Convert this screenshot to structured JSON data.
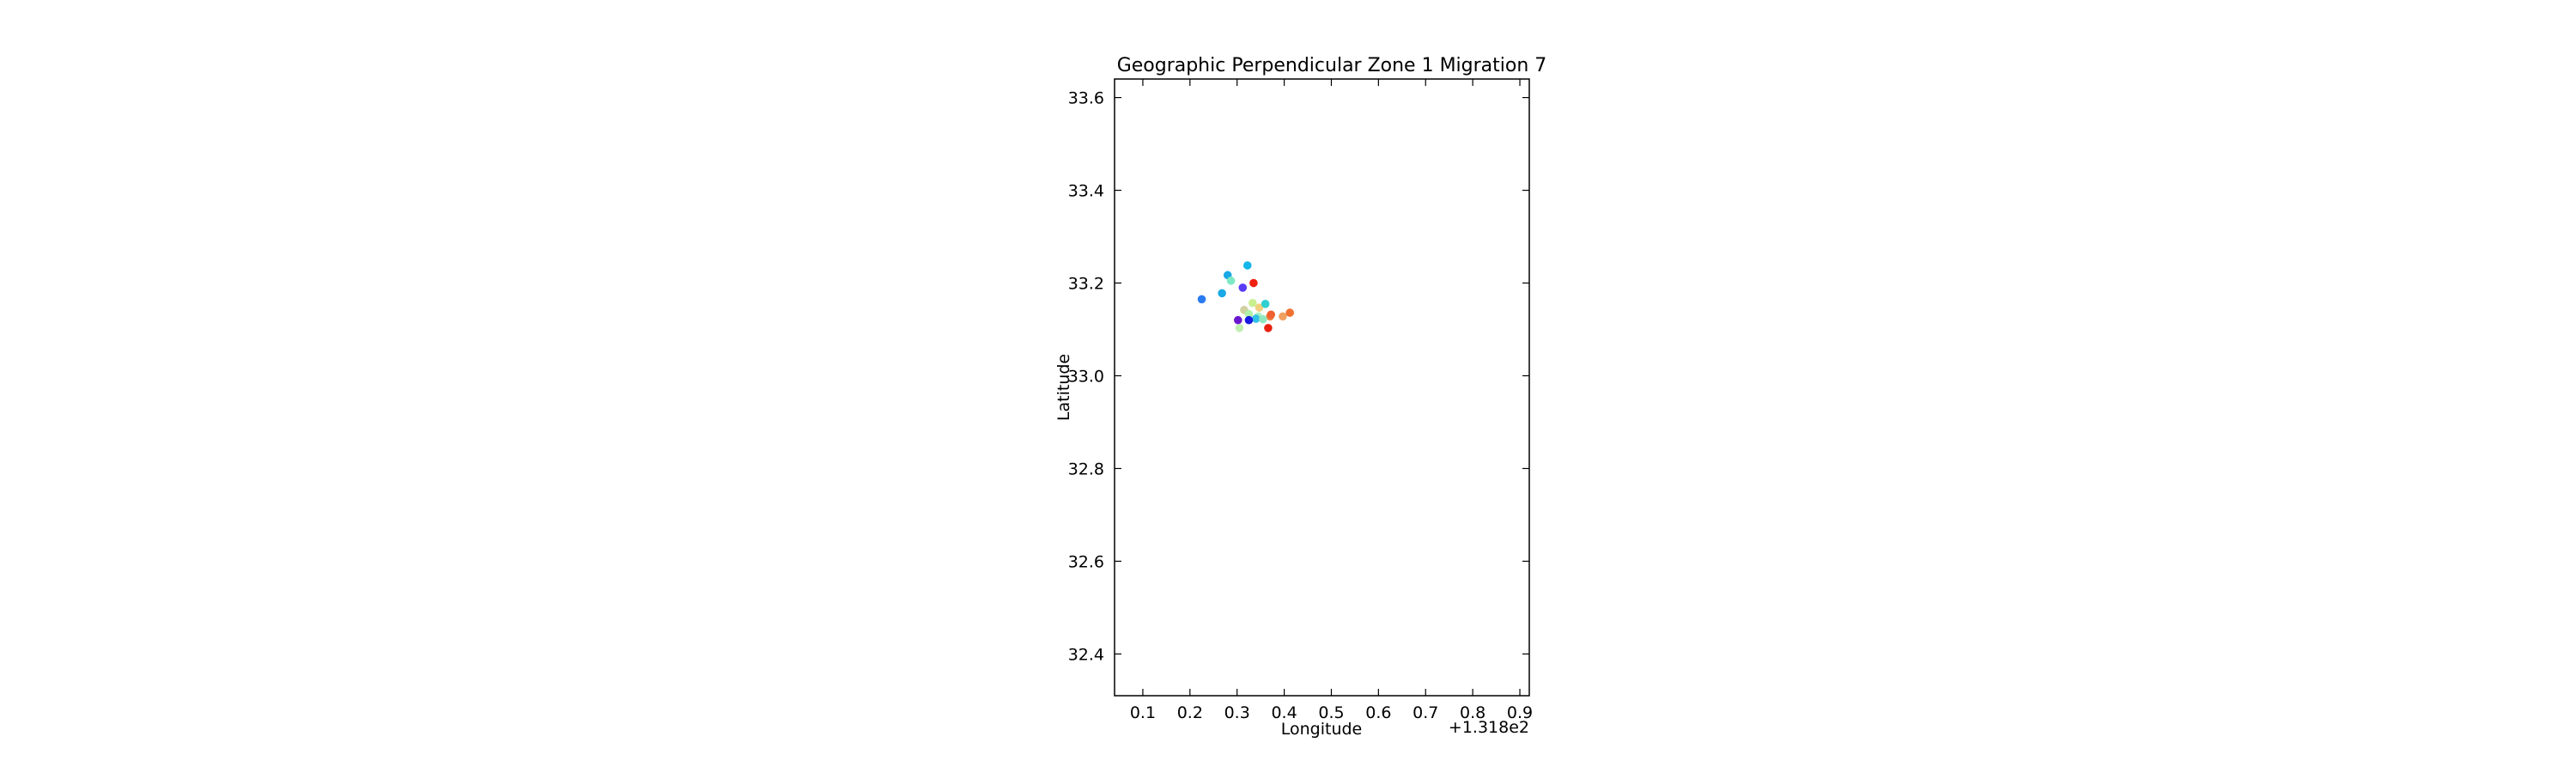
{
  "chart_data": {
    "type": "scatter",
    "title": "Geographic Perpendicular Zone 1 Migration 7",
    "xlabel": "Longitude",
    "ylabel": "Latitude",
    "x_offset_label": "+1.318e2",
    "xlim": [
      0.04,
      0.92
    ],
    "ylim": [
      32.31,
      33.64
    ],
    "x_ticks": [
      0.1,
      0.2,
      0.3,
      0.4,
      0.5,
      0.6,
      0.7,
      0.8,
      0.9
    ],
    "x_tick_labels": [
      "0.1",
      "0.2",
      "0.3",
      "0.4",
      "0.5",
      "0.6",
      "0.7",
      "0.8",
      "0.9"
    ],
    "y_ticks": [
      32.4,
      32.6,
      32.8,
      33.0,
      33.2,
      33.4,
      33.6
    ],
    "y_tick_labels": [
      "32.4",
      "32.6",
      "32.8",
      "33.0",
      "33.2",
      "33.4",
      "33.6"
    ],
    "grid": false,
    "legend": "none",
    "colormap": "rainbow",
    "points": [
      {
        "x": 0.225,
        "y": 33.165,
        "color": "#2b7bf0"
      },
      {
        "x": 0.268,
        "y": 33.178,
        "color": "#1aa8e6"
      },
      {
        "x": 0.28,
        "y": 33.217,
        "color": "#1aa8e6"
      },
      {
        "x": 0.287,
        "y": 33.205,
        "color": "#7fe8c4"
      },
      {
        "x": 0.322,
        "y": 33.238,
        "color": "#12b6e8"
      },
      {
        "x": 0.312,
        "y": 33.19,
        "color": "#5a3bf5"
      },
      {
        "x": 0.335,
        "y": 33.2,
        "color": "#f02010"
      },
      {
        "x": 0.333,
        "y": 33.157,
        "color": "#c8f090"
      },
      {
        "x": 0.347,
        "y": 33.147,
        "color": "#f0d080"
      },
      {
        "x": 0.315,
        "y": 33.142,
        "color": "#d0d0a0"
      },
      {
        "x": 0.325,
        "y": 33.133,
        "color": "#b0f0a8"
      },
      {
        "x": 0.345,
        "y": 33.128,
        "color": "#a8f0c0"
      },
      {
        "x": 0.36,
        "y": 33.155,
        "color": "#30d0d0"
      },
      {
        "x": 0.37,
        "y": 33.128,
        "color": "#f08040"
      },
      {
        "x": 0.372,
        "y": 33.132,
        "color": "#f06030"
      },
      {
        "x": 0.34,
        "y": 33.123,
        "color": "#30c0e8"
      },
      {
        "x": 0.325,
        "y": 33.12,
        "color": "#1a1ae0"
      },
      {
        "x": 0.302,
        "y": 33.12,
        "color": "#6a18d0"
      },
      {
        "x": 0.305,
        "y": 33.103,
        "color": "#c0f0b0"
      },
      {
        "x": 0.366,
        "y": 33.103,
        "color": "#e82010"
      },
      {
        "x": 0.397,
        "y": 33.128,
        "color": "#f0a060"
      },
      {
        "x": 0.412,
        "y": 33.136,
        "color": "#f07030"
      },
      {
        "x": 0.355,
        "y": 33.122,
        "color": "#90e8c0"
      }
    ]
  }
}
